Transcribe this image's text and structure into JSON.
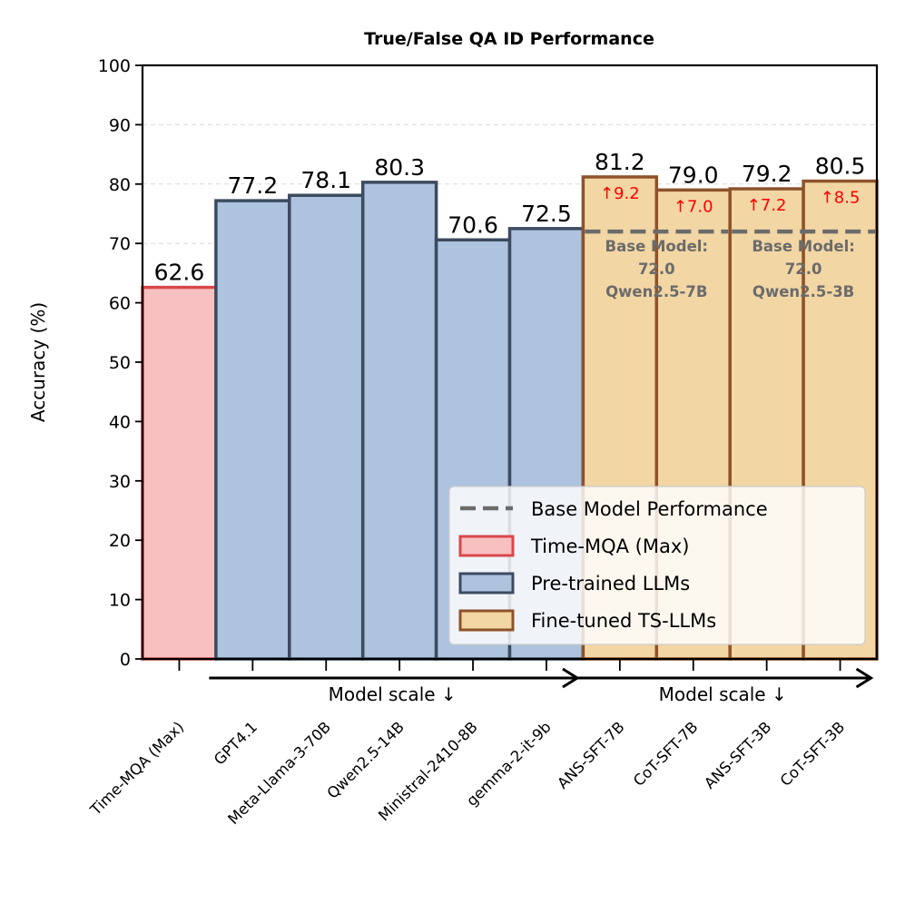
{
  "chart_data": {
    "type": "bar",
    "title": "True/False QA ID Performance",
    "ylabel": "Accuracy (%)",
    "xlabel": "",
    "ylim": [
      0,
      100
    ],
    "yticks": [
      0,
      10,
      20,
      30,
      40,
      50,
      60,
      70,
      80,
      90,
      100
    ],
    "grid": "horizontal dashed",
    "categories": [
      "Time-MQA (Max)",
      "GPT4.1",
      "Meta-Llama-3-70B",
      "Qwen2.5-14B",
      "Ministral-2410-8B",
      "gemma-2-it-9b",
      "ANS-SFT-7B",
      "CoT-SFT-7B",
      "ANS-SFT-3B",
      "CoT-SFT-3B"
    ],
    "values": [
      62.6,
      77.2,
      78.1,
      80.3,
      70.6,
      72.5,
      81.2,
      79.0,
      79.2,
      80.5
    ],
    "value_labels": [
      "62.6",
      "77.2",
      "78.1",
      "80.3",
      "70.6",
      "72.5",
      "81.2",
      "79.0",
      "79.2",
      "80.5"
    ],
    "groups": [
      "Time-MQA (Max)",
      "Pre-trained LLMs",
      "Pre-trained LLMs",
      "Pre-trained LLMs",
      "Pre-trained LLMs",
      "Pre-trained LLMs",
      "Fine-tuned TS-LLMs",
      "Fine-tuned TS-LLMs",
      "Fine-tuned TS-LLMs",
      "Fine-tuned TS-LLMs"
    ],
    "improvements": [
      {
        "bar": 6,
        "label": "↑9.2"
      },
      {
        "bar": 7,
        "label": "↑7.0"
      },
      {
        "bar": 8,
        "label": "↑7.2"
      },
      {
        "bar": 9,
        "label": "↑8.5"
      }
    ],
    "base_models": [
      {
        "bars": [
          6,
          7
        ],
        "value": 72.0,
        "lines": [
          "Base Model:",
          "72.0",
          "Qwen2.5-7B"
        ]
      },
      {
        "bars": [
          8,
          9
        ],
        "value": 72.0,
        "lines": [
          "Base Model:",
          "72.0",
          "Qwen2.5-3B"
        ]
      }
    ],
    "scale_arrows": [
      {
        "from_bar": 1,
        "to_bar": 5,
        "label": "Model scale  ↓"
      },
      {
        "from_bar": 6,
        "to_bar": 9,
        "label": "Model scale  ↓"
      }
    ],
    "legend": {
      "position": "lower-right",
      "entries": [
        {
          "label": "Base Model Performance",
          "kind": "dashed-line"
        },
        {
          "label": "Time-MQA (Max)",
          "kind": "patch",
          "group": "Time-MQA (Max)"
        },
        {
          "label": "Pre-trained LLMs",
          "kind": "patch",
          "group": "Pre-trained LLMs"
        },
        {
          "label": "Fine-tuned TS-LLMs",
          "kind": "patch",
          "group": "Fine-tuned TS-LLMs"
        }
      ]
    },
    "colors": {
      "Time-MQA (Max)": {
        "fill": "#f7c1c1",
        "edge": "#d9474a"
      },
      "Pre-trained LLMs": {
        "fill": "#adc3de",
        "edge": "#3c4b60"
      },
      "Fine-tuned TS-LLMs": {
        "fill": "#f2d6a4",
        "edge": "#8e522a"
      },
      "base_line": "#6b6b6b",
      "improvement": "#ff0000"
    }
  }
}
